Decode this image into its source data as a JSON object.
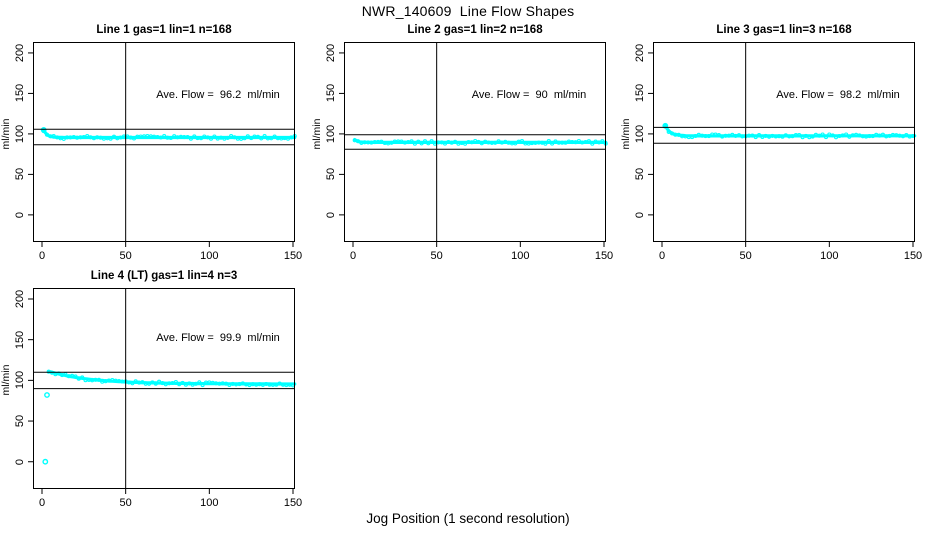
{
  "page": {
    "title": "NWR_140609  Line Flow Shapes",
    "xlabel": "Jog Position (1 second resolution)"
  },
  "chart_data": {
    "type": "scatter",
    "title": "NWR_140609  Line Flow Shapes",
    "xlabel": "Jog Position (1 second resolution)",
    "ylabel": "ml/min",
    "x_ticks": [
      0,
      50,
      100,
      150
    ],
    "y_ticks": [
      0,
      50,
      100,
      150,
      200
    ],
    "xlim": [
      -5.5,
      151.5
    ],
    "ylim": [
      -33.5,
      213.5
    ],
    "grid": false,
    "point_color": "#00ffff",
    "line_color": "#000000",
    "panels": [
      {
        "title": "Line 1 gas=1 lin=1 n=168",
        "annotation": "Ave. Flow =  96.2  ml/min",
        "ave_flow_ml_min": 96.2,
        "n": 168,
        "ref_upper": 105.8,
        "ref_lower": 86.6,
        "vline_x": 50,
        "series": [
          [
            1,
            105
          ],
          [
            2,
            101.5
          ],
          [
            3,
            99.2
          ],
          [
            4,
            97.8
          ],
          [
            5,
            96.9
          ],
          [
            7,
            96.1
          ],
          [
            10,
            95.7
          ],
          [
            15,
            95.5
          ],
          [
            20,
            95.5
          ],
          [
            50,
            95.6
          ],
          [
            100,
            95.6
          ],
          [
            151,
            95.6
          ]
        ],
        "markers": [
          [
            1,
            105
          ]
        ]
      },
      {
        "title": "Line 2 gas=1 lin=2 n=168",
        "annotation": "Ave. Flow =  90  ml/min",
        "ave_flow_ml_min": 90,
        "n": 168,
        "ref_upper": 99,
        "ref_lower": 81,
        "vline_x": 50,
        "series": [
          [
            1,
            93
          ],
          [
            2,
            91.7
          ],
          [
            3,
            90.8
          ],
          [
            4,
            90.3
          ],
          [
            5,
            90
          ],
          [
            7,
            89.7
          ],
          [
            10,
            89.6
          ],
          [
            15,
            89.5
          ],
          [
            20,
            89.5
          ],
          [
            50,
            89.5
          ],
          [
            100,
            89.5
          ],
          [
            151,
            89.5
          ]
        ],
        "markers": []
      },
      {
        "title": "Line 3 gas=1 lin=3 n=168",
        "annotation": "Ave. Flow =  98.2  ml/min",
        "ave_flow_ml_min": 98.2,
        "n": 168,
        "ref_upper": 108,
        "ref_lower": 88.4,
        "vline_x": 50,
        "series": [
          [
            2,
            110
          ],
          [
            3,
            106.5
          ],
          [
            4,
            104
          ],
          [
            5,
            102
          ],
          [
            7,
            99.8
          ],
          [
            10,
            98.4
          ],
          [
            15,
            97.7
          ],
          [
            20,
            97.5
          ],
          [
            50,
            97.5
          ],
          [
            100,
            97.6
          ],
          [
            151,
            97.6
          ]
        ],
        "markers": [
          [
            2,
            110
          ]
        ]
      },
      {
        "title": "Line 4 (LT) gas=1 lin=4 n=3",
        "annotation": "Ave. Flow =  99.9  ml/min",
        "ave_flow_ml_min": 99.9,
        "n": 3,
        "ref_upper": 109.9,
        "ref_lower": 89.9,
        "vline_x": 50,
        "series": [
          [
            4,
            111
          ],
          [
            6,
            110
          ],
          [
            8,
            108.8
          ],
          [
            10,
            107.8
          ],
          [
            15,
            105.5
          ],
          [
            20,
            103.6
          ],
          [
            25,
            102.2
          ],
          [
            30,
            101
          ],
          [
            40,
            99.2
          ],
          [
            50,
            98
          ],
          [
            60,
            97.2
          ],
          [
            80,
            96.3
          ],
          [
            100,
            95.9
          ],
          [
            120,
            95.7
          ],
          [
            151,
            95.5
          ]
        ],
        "markers": [
          [
            2,
            0
          ],
          [
            3,
            82
          ]
        ]
      }
    ]
  }
}
